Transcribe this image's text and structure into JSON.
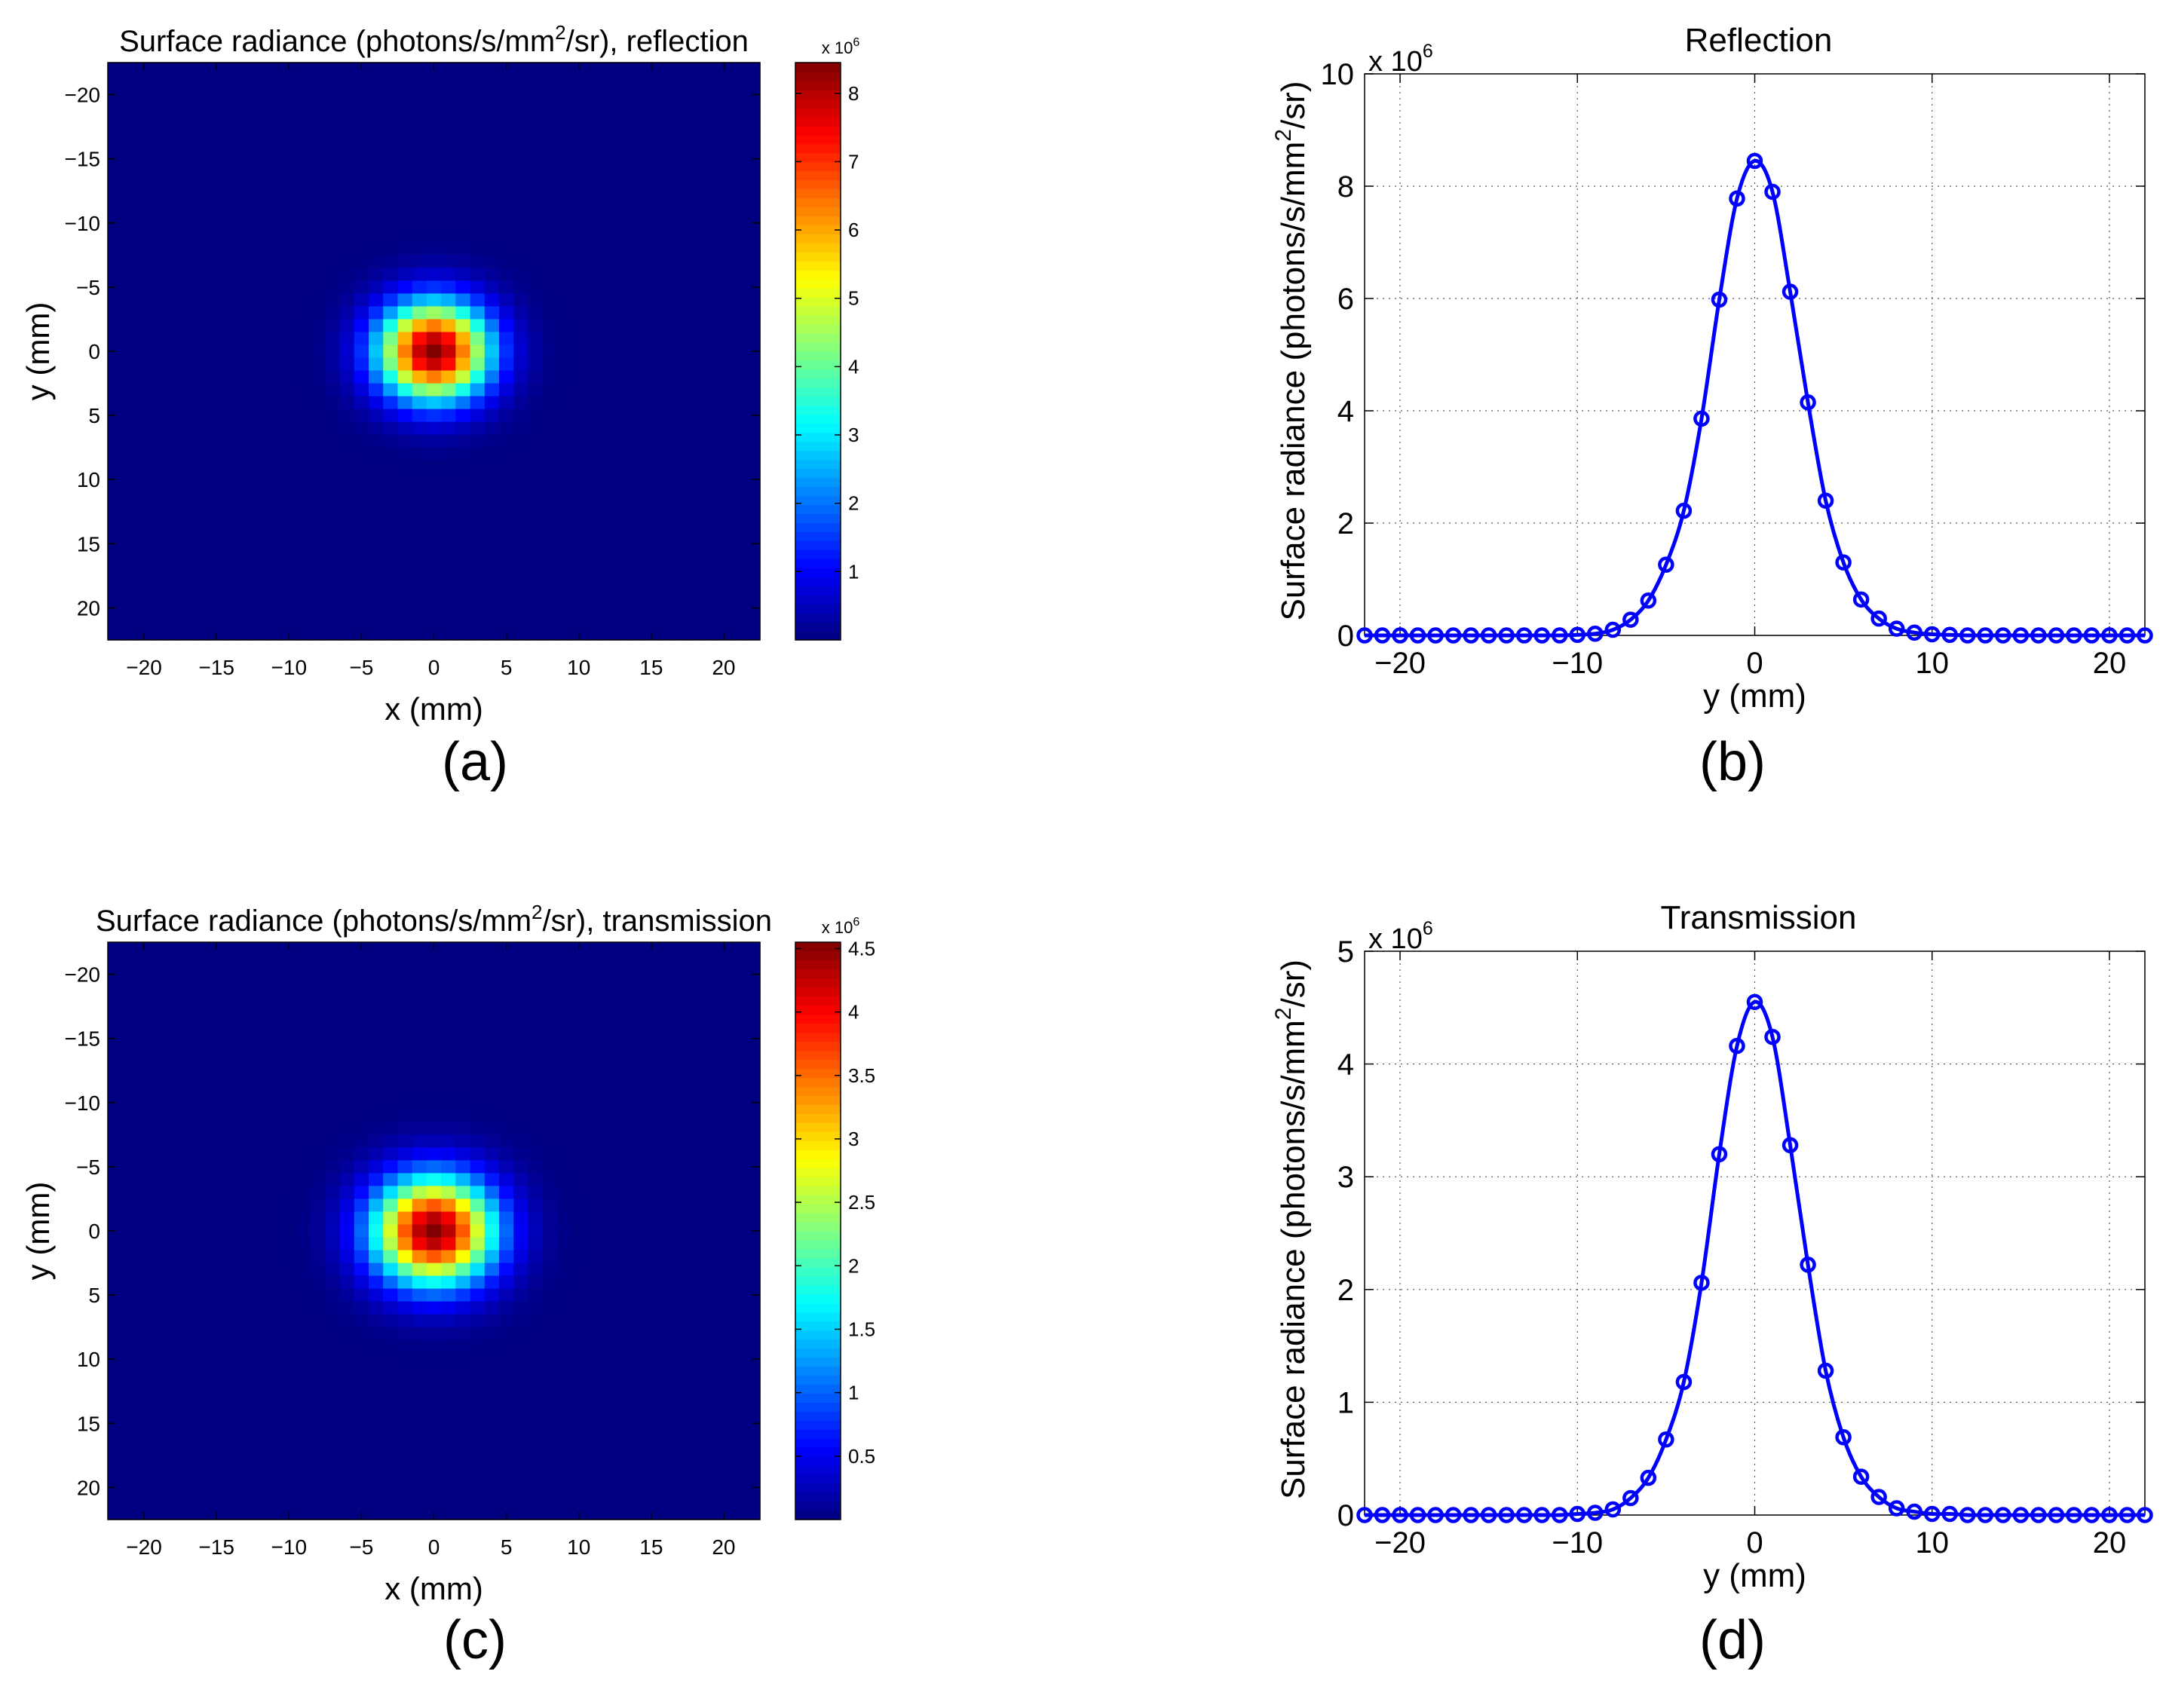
{
  "chart_data": [
    {
      "id": "a",
      "type": "heatmap",
      "title_prefix": "Surface radiance (photons/s/mm",
      "title_sup": "2",
      "title_suffix": "/sr), reflection",
      "xlabel": "x (mm)",
      "ylabel": "y (mm)",
      "xlim": [
        -22.5,
        22.5
      ],
      "ylim": [
        -22.5,
        22.5
      ],
      "y_reversed": true,
      "xticks": [
        -20,
        -15,
        -10,
        -5,
        0,
        5,
        10,
        15,
        20
      ],
      "xtick_labels": [
        "−20",
        "−15",
        "−10",
        "−5",
        "0",
        "5",
        "10",
        "15",
        "20"
      ],
      "yticks": [
        -20,
        -15,
        -10,
        -5,
        0,
        5,
        10,
        15,
        20
      ],
      "ytick_labels": [
        "−20",
        "−15",
        "−10",
        "−5",
        "0",
        "5",
        "10",
        "15",
        "20"
      ],
      "grid_cells": 45,
      "cell_size_mm": 1,
      "peak_value": 8450000,
      "gaussian_sigma_mm": 2.65,
      "colormap": "jet",
      "colorbar": {
        "min": 0,
        "max": 8450000,
        "ticks": [
          1,
          2,
          3,
          4,
          5,
          6,
          7,
          8
        ],
        "tick_labels": [
          "1",
          "2",
          "3",
          "4",
          "5",
          "6",
          "7",
          "8"
        ],
        "exponent_base": "x 10",
        "exponent_power": "6"
      },
      "caption": "(a)"
    },
    {
      "id": "b",
      "type": "line",
      "title": "Reflection",
      "xlabel": "y (mm)",
      "ylabel_prefix": "Surface radiance (photons/s/mm",
      "ylabel_sup": "2",
      "ylabel_suffix": "/sr)",
      "xlim": [
        -22,
        22
      ],
      "ylim": [
        0,
        10
      ],
      "y_multiplier_base": "x 10",
      "y_multiplier_power": "6",
      "grid": true,
      "xticks": [
        -20,
        -10,
        0,
        10,
        20
      ],
      "xtick_labels": [
        "−20",
        "−10",
        "0",
        "10",
        "20"
      ],
      "yticks": [
        0,
        2,
        4,
        6,
        8,
        10
      ],
      "ytick_labels": [
        "0",
        "2",
        "4",
        "6",
        "8",
        "10"
      ],
      "series": [
        {
          "name": "Reflection",
          "color": "#0000ff",
          "style": "line-with-circle-markers",
          "x": [
            -22,
            -21,
            -20,
            -19,
            -18,
            -17,
            -16,
            -15,
            -14,
            -13,
            -12,
            -11,
            -10,
            -9,
            -8,
            -7,
            -6,
            -5,
            -4,
            -3,
            -2,
            -1,
            0,
            1,
            2,
            3,
            4,
            5,
            6,
            7,
            8,
            9,
            10,
            11,
            12,
            13,
            14,
            15,
            16,
            17,
            18,
            19,
            20,
            21,
            22
          ],
          "y": [
            0,
            0,
            0,
            0,
            0,
            0,
            0,
            0,
            0,
            0,
            0,
            0,
            0.01,
            0.03,
            0.1,
            0.28,
            0.62,
            1.26,
            2.22,
            3.86,
            5.98,
            7.78,
            8.45,
            7.9,
            6.12,
            4.15,
            2.4,
            1.3,
            0.64,
            0.3,
            0.12,
            0.05,
            0.02,
            0.01,
            0,
            0,
            0,
            0,
            0,
            0,
            0,
            0,
            0,
            0,
            0
          ]
        }
      ],
      "caption": "(b)"
    },
    {
      "id": "c",
      "type": "heatmap",
      "title_prefix": "Surface radiance (photons/s/mm",
      "title_sup": "2",
      "title_suffix": "/sr), transmission",
      "xlabel": "x (mm)",
      "ylabel": "y (mm)",
      "xlim": [
        -22.5,
        22.5
      ],
      "ylim": [
        -22.5,
        22.5
      ],
      "y_reversed": true,
      "xticks": [
        -20,
        -15,
        -10,
        -5,
        0,
        5,
        10,
        15,
        20
      ],
      "xtick_labels": [
        "−20",
        "−15",
        "−10",
        "−5",
        "0",
        "5",
        "10",
        "15",
        "20"
      ],
      "yticks": [
        -20,
        -15,
        -10,
        -5,
        0,
        5,
        10,
        15,
        20
      ],
      "ytick_labels": [
        "−20",
        "−15",
        "−10",
        "−5",
        "0",
        "5",
        "10",
        "15",
        "20"
      ],
      "grid_cells": 45,
      "cell_size_mm": 1,
      "peak_value": 4550000,
      "gaussian_sigma_mm": 2.9,
      "colormap": "jet",
      "colorbar": {
        "min": 0,
        "max": 4550000,
        "ticks": [
          0.5,
          1,
          1.5,
          2,
          2.5,
          3,
          3.5,
          4,
          4.5
        ],
        "tick_labels": [
          "0.5",
          "1",
          "1.5",
          "2",
          "2.5",
          "3",
          "3.5",
          "4",
          "4.5"
        ],
        "exponent_base": "x 10",
        "exponent_power": "6"
      },
      "caption": "(c)"
    },
    {
      "id": "d",
      "type": "line",
      "title": "Transmission",
      "xlabel": "y (mm)",
      "ylabel_prefix": "Surface radiance (photons/s/mm",
      "ylabel_sup": "2",
      "ylabel_suffix": "/sr)",
      "xlim": [
        -22,
        22
      ],
      "ylim": [
        0,
        5
      ],
      "y_multiplier_base": "x 10",
      "y_multiplier_power": "6",
      "grid": true,
      "xticks": [
        -20,
        -10,
        0,
        10,
        20
      ],
      "xtick_labels": [
        "−20",
        "−10",
        "0",
        "10",
        "20"
      ],
      "yticks": [
        0,
        1,
        2,
        3,
        4,
        5
      ],
      "ytick_labels": [
        "0",
        "1",
        "2",
        "3",
        "4",
        "5"
      ],
      "series": [
        {
          "name": "Transmission",
          "color": "#0000ff",
          "style": "line-with-circle-markers",
          "x": [
            -22,
            -21,
            -20,
            -19,
            -18,
            -17,
            -16,
            -15,
            -14,
            -13,
            -12,
            -11,
            -10,
            -9,
            -8,
            -7,
            -6,
            -5,
            -4,
            -3,
            -2,
            -1,
            0,
            1,
            2,
            3,
            4,
            5,
            6,
            7,
            8,
            9,
            10,
            11,
            12,
            13,
            14,
            15,
            16,
            17,
            18,
            19,
            20,
            21,
            22
          ],
          "y": [
            0,
            0,
            0,
            0,
            0,
            0,
            0,
            0,
            0,
            0,
            0,
            0,
            0.01,
            0.02,
            0.05,
            0.15,
            0.33,
            0.67,
            1.18,
            2.06,
            3.2,
            4.16,
            4.55,
            4.24,
            3.28,
            2.22,
            1.28,
            0.69,
            0.34,
            0.16,
            0.06,
            0.03,
            0.01,
            0.01,
            0,
            0,
            0,
            0,
            0,
            0,
            0,
            0,
            0,
            0,
            0
          ]
        }
      ],
      "caption": "(d)"
    }
  ]
}
